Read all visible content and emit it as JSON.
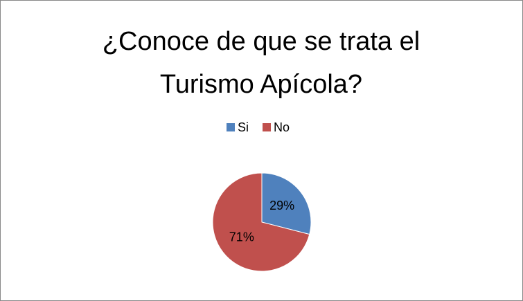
{
  "chart_data": {
    "type": "pie",
    "title": "¿Conoce de que se trata el Turismo Apícola?",
    "categories": [
      "Si",
      "No"
    ],
    "values": [
      29,
      71
    ],
    "value_labels": [
      "29%",
      "71%"
    ],
    "colors": [
      "#4f81bd",
      "#c0504d"
    ],
    "legend": "top"
  }
}
